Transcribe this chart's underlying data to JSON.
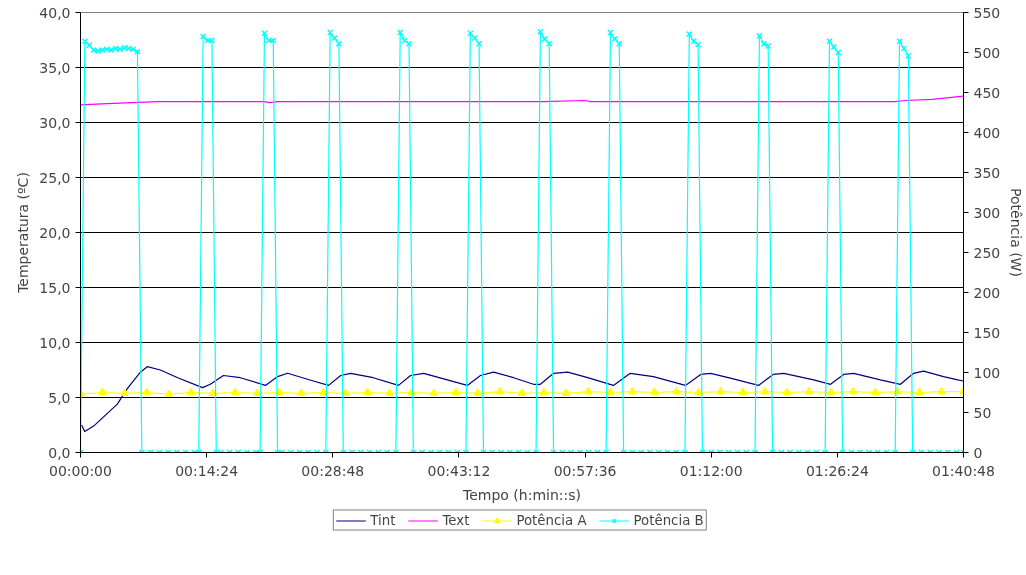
{
  "chart_data": {
    "type": "line",
    "xlabel": "Tempo (h:min::s)",
    "ylabel": "Temperatura (ºC)",
    "y2label": "Potência (W)",
    "xlim": [
      0,
      1.68
    ],
    "xticks": [
      {
        "value": 0,
        "label": "00:00:00"
      },
      {
        "value": 0.24,
        "label": "00:14:24"
      },
      {
        "value": 0.48,
        "label": "00:28:48"
      },
      {
        "value": 0.72,
        "label": "00:43:12"
      },
      {
        "value": 0.96,
        "label": "00:57:36"
      },
      {
        "value": 1.2,
        "label": "01:12:00"
      },
      {
        "value": 1.44,
        "label": "01:26:24"
      },
      {
        "value": 1.68,
        "label": "01:40:48"
      }
    ],
    "ylim": [
      0,
      40
    ],
    "yticks": [
      {
        "value": 0,
        "label": "0,0"
      },
      {
        "value": 5,
        "label": "5,0"
      },
      {
        "value": 10,
        "label": "10,0"
      },
      {
        "value": 15,
        "label": "15,0"
      },
      {
        "value": 20,
        "label": "20,0"
      },
      {
        "value": 25,
        "label": "25,0"
      },
      {
        "value": 30,
        "label": "30,0"
      },
      {
        "value": 35,
        "label": "35,0"
      },
      {
        "value": 40,
        "label": "40,0"
      }
    ],
    "y2lim": [
      0,
      550
    ],
    "y2ticks": [
      0,
      50,
      100,
      150,
      200,
      250,
      300,
      350,
      400,
      450,
      500,
      550
    ],
    "grid": "y",
    "legend": "bottom",
    "line_style": "solid",
    "series": [
      {
        "name": "Tint",
        "color": "#000080",
        "marker": "none",
        "x": [
          0.002,
          0.008,
          0.025,
          0.07,
          0.089,
          0.114,
          0.127,
          0.152,
          0.185,
          0.232,
          0.247,
          0.272,
          0.304,
          0.352,
          0.375,
          0.394,
          0.443,
          0.472,
          0.495,
          0.514,
          0.557,
          0.605,
          0.628,
          0.653,
          0.691,
          0.736,
          0.761,
          0.786,
          0.824,
          0.862,
          0.875,
          0.9,
          0.927,
          0.965,
          1.014,
          1.046,
          1.09,
          1.151,
          1.18,
          1.199,
          1.242,
          1.29,
          1.318,
          1.338,
          1.395,
          1.427,
          1.452,
          1.471,
          1.522,
          1.56,
          1.585,
          1.604,
          1.642,
          1.669,
          1.68
        ],
        "values": [
          2.5,
          1.9,
          2.4,
          4.4,
          5.8,
          7.3,
          7.8,
          7.5,
          6.8,
          5.9,
          6.2,
          7.0,
          6.8,
          6.1,
          6.9,
          7.2,
          6.5,
          6.1,
          7.0,
          7.2,
          6.8,
          6.1,
          7.0,
          7.2,
          6.7,
          6.1,
          7.0,
          7.3,
          6.8,
          6.2,
          6.2,
          7.2,
          7.3,
          6.8,
          6.1,
          7.2,
          6.9,
          6.1,
          7.1,
          7.2,
          6.7,
          6.1,
          7.1,
          7.2,
          6.6,
          6.2,
          7.1,
          7.2,
          6.6,
          6.2,
          7.2,
          7.4,
          6.9,
          6.6,
          6.5
        ]
      },
      {
        "name": "Text",
        "color": "#ff00ff",
        "marker": "none",
        "x": [
          0,
          0.04,
          0.097,
          0.147,
          0.35,
          0.36,
          0.375,
          0.88,
          0.96,
          0.97,
          1.55,
          1.57,
          1.62,
          1.68
        ],
        "values": [
          31.6,
          31.7,
          31.8,
          31.9,
          31.9,
          31.8,
          31.9,
          31.9,
          32.0,
          31.9,
          31.9,
          32.0,
          32.1,
          32.4
        ]
      },
      {
        "name": "Potência A",
        "color": "#ffff00",
        "marker": "triangle",
        "axis": "y2",
        "x": [
          0,
          0.042,
          0.084,
          0.126,
          0.168,
          0.21,
          0.252,
          0.294,
          0.336,
          0.378,
          0.42,
          0.462,
          0.504,
          0.546,
          0.588,
          0.63,
          0.672,
          0.714,
          0.756,
          0.798,
          0.84,
          0.882,
          0.924,
          0.966,
          1.008,
          1.05,
          1.092,
          1.134,
          1.176,
          1.218,
          1.26,
          1.302,
          1.344,
          1.386,
          1.428,
          1.47,
          1.512,
          1.554,
          1.596,
          1.638,
          1.68
        ],
        "values": [
          73,
          75,
          74,
          75,
          73,
          75,
          74,
          75,
          74,
          75,
          74,
          75,
          74,
          75,
          74,
          75,
          74,
          75,
          74,
          76,
          74,
          75,
          74,
          76,
          75,
          76,
          75,
          76,
          75,
          76,
          75,
          76,
          75,
          76,
          75,
          76,
          75,
          76,
          75,
          76,
          76
        ]
      },
      {
        "name": "Potência B",
        "color": "#00ffff",
        "marker": "cross",
        "axis": "y2",
        "x": [
          0,
          0.0083,
          0.0167,
          0.025,
          0.0333,
          0.0417,
          0.05,
          0.0583,
          0.0667,
          0.075,
          0.0833,
          0.0917,
          0.1,
          0.1083,
          0.1167,
          0.1333,
          0.15,
          0.1667,
          0.1833,
          0.2,
          0.2167,
          0.225,
          0.2333,
          0.2417,
          0.25,
          0.2583,
          0.2667,
          0.2833,
          0.3,
          0.3167,
          0.3333,
          0.3417,
          0.35,
          0.3583,
          0.3667,
          0.375,
          0.3833,
          0.4,
          0.4167,
          0.4333,
          0.45,
          0.4667,
          0.475,
          0.4833,
          0.4917,
          0.5,
          0.5167,
          0.5333,
          0.55,
          0.5667,
          0.5833,
          0.6,
          0.6083,
          0.6167,
          0.625,
          0.6333,
          0.65,
          0.6667,
          0.6833,
          0.7,
          0.7167,
          0.7333,
          0.7417,
          0.75,
          0.7583,
          0.7667,
          0.7833,
          0.8,
          0.8167,
          0.8333,
          0.85,
          0.8667,
          0.875,
          0.8833,
          0.8917,
          0.9,
          0.9167,
          0.9333,
          0.95,
          0.9667,
          0.9833,
          1.0,
          1.0083,
          1.0167,
          1.025,
          1.0333,
          1.05,
          1.0667,
          1.0833,
          1.1,
          1.1167,
          1.1333,
          1.15,
          1.1583,
          1.1667,
          1.175,
          1.1833,
          1.2,
          1.2167,
          1.2333,
          1.25,
          1.2667,
          1.2833,
          1.2917,
          1.3,
          1.3083,
          1.3167,
          1.3333,
          1.35,
          1.3667,
          1.3833,
          1.4,
          1.4167,
          1.425,
          1.4333,
          1.4417,
          1.45,
          1.4667,
          1.4833,
          1.5,
          1.5167,
          1.5333,
          1.55,
          1.5583,
          1.5667,
          1.575,
          1.5833,
          1.6,
          1.6167,
          1.6333,
          1.65,
          1.6667,
          1.68
        ],
        "values": [
          0,
          514,
          509,
          503,
          502,
          503,
          504,
          503,
          505,
          504,
          506,
          505,
          504,
          501,
          0,
          0,
          0,
          0,
          0,
          0,
          0,
          0,
          520,
          515,
          515,
          0,
          0,
          0,
          0,
          0,
          0,
          0,
          524,
          515,
          515,
          0,
          0,
          0,
          0,
          0,
          0,
          0,
          525,
          518,
          511,
          0,
          0,
          0,
          0,
          0,
          0,
          0,
          525,
          515,
          511,
          0,
          0,
          0,
          0,
          0,
          0,
          0,
          524,
          518,
          511,
          0,
          0,
          0,
          0,
          0,
          0,
          0,
          526,
          517,
          511,
          0,
          0,
          0,
          0,
          0,
          0,
          0,
          525,
          517,
          511,
          0,
          0,
          0,
          0,
          0,
          0,
          0,
          0,
          523,
          514,
          510,
          0,
          0,
          0,
          0,
          0,
          0,
          0,
          521,
          511,
          508,
          0,
          0,
          0,
          0,
          0,
          0,
          0,
          514,
          507,
          500,
          0,
          0,
          0,
          0,
          0,
          0,
          0,
          514,
          505,
          496,
          0,
          0,
          0,
          0,
          0,
          0,
          0
        ]
      }
    ]
  }
}
